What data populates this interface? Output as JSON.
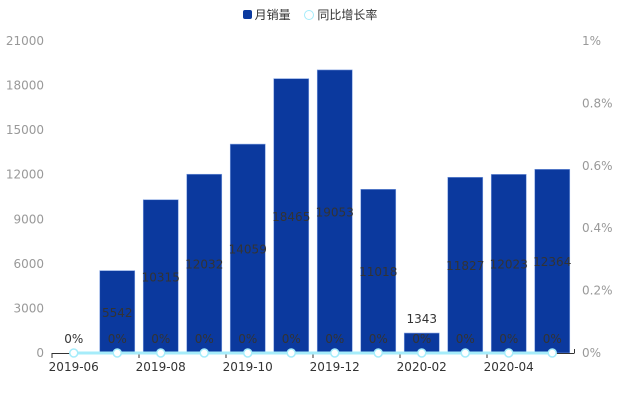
{
  "legend": {
    "bar_label": "月销量",
    "line_label": "同比增长率"
  },
  "colors": {
    "bar": "#0b399e",
    "line": "#a6ecfa",
    "axis_text": "#999999",
    "label_text": "#333333"
  },
  "chart_data": {
    "type": "bar",
    "categories": [
      "2019-06",
      "2019-07",
      "2019-08",
      "2019-09",
      "2019-10",
      "2019-11",
      "2019-12",
      "2020-01",
      "2020-02",
      "2020-03",
      "2020-04",
      "2020-05"
    ],
    "x_tick_labels_shown": [
      "2019-06",
      "2019-08",
      "2019-10",
      "2019-12",
      "2020-02",
      "2020-04"
    ],
    "series": [
      {
        "name": "月销量",
        "type": "bar",
        "axis": "left",
        "values": [
          0,
          5542,
          10315,
          12032,
          14059,
          18465,
          19053,
          11018,
          1343,
          11827,
          12023,
          12364
        ]
      },
      {
        "name": "同比增长率",
        "type": "line",
        "axis": "right",
        "values": [
          0,
          0,
          0,
          0,
          0,
          0,
          0,
          0,
          0,
          0,
          0,
          0
        ],
        "labels": [
          "0%",
          "0%",
          "0%",
          "0%",
          "0%",
          "0%",
          "0%",
          "0%",
          "0%",
          "0%",
          "0%",
          "0%"
        ]
      }
    ],
    "ylim": [
      0,
      21000
    ],
    "y_ticks": [
      "0",
      "3000",
      "6000",
      "9000",
      "12000",
      "15000",
      "18000",
      "21000"
    ],
    "y2lim": [
      0,
      1
    ],
    "y2_ticks": [
      "0%",
      "0.2%",
      "0.4%",
      "0.6%",
      "0.8%",
      "1%"
    ],
    "legend_position": "top-center",
    "grid": false
  }
}
